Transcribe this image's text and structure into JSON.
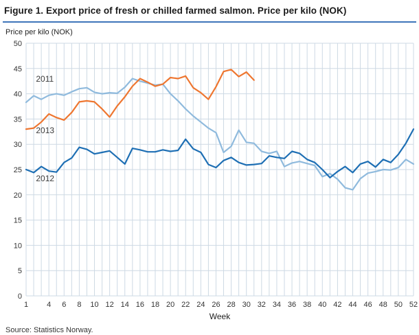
{
  "header": {
    "title": "Figure 1. Export price of fresh or chilled farmed salmon. Price per kilo (NOK)"
  },
  "colors": {
    "title_rule": "#3e75ba",
    "grid": "#cdd9e4",
    "tick_text": "#333333"
  },
  "chart_data": {
    "type": "line",
    "title": "Figure 1. Export price of fresh or chilled farmed salmon. Price per kilo (NOK)",
    "ylabel": "Price per kilo (NOK)",
    "xlabel": "Week",
    "xlim": [
      1,
      52
    ],
    "ylim": [
      0,
      50
    ],
    "grid": true,
    "legend_position": "inline-labels",
    "x_ticks": [
      1,
      4,
      6,
      8,
      10,
      12,
      14,
      16,
      18,
      20,
      22,
      24,
      26,
      28,
      30,
      32,
      34,
      36,
      38,
      40,
      42,
      44,
      46,
      48,
      50,
      52
    ],
    "y_ticks": [
      0,
      5,
      10,
      15,
      20,
      25,
      30,
      35,
      40,
      45,
      50
    ],
    "series": [
      {
        "name": "2011",
        "color": "#8fbadd",
        "x_start": 1,
        "values": [
          38.3,
          39.6,
          38.9,
          39.7,
          40.0,
          39.7,
          40.4,
          41.0,
          41.2,
          40.3,
          40.0,
          40.2,
          40.1,
          41.3,
          43.0,
          42.5,
          42.1,
          41.7,
          41.9,
          40.0,
          38.6,
          37.0,
          35.6,
          34.4,
          33.2,
          32.3,
          28.4,
          29.6,
          32.8,
          30.4,
          30.2,
          28.6,
          28.2,
          28.6,
          25.6,
          26.3,
          26.6,
          26.2,
          25.8,
          23.6,
          24.2,
          23.1,
          21.4,
          21.0,
          23.2,
          24.3,
          24.6,
          25.0,
          24.9,
          25.4,
          27.0,
          26.1
        ]
      },
      {
        "name": "2012",
        "color": "#1e6fb4",
        "x_start": 1,
        "values": [
          25.0,
          24.4,
          25.6,
          24.7,
          24.5,
          26.4,
          27.3,
          29.4,
          29.0,
          28.1,
          28.4,
          28.7,
          27.4,
          26.1,
          29.2,
          28.9,
          28.5,
          28.5,
          28.9,
          28.6,
          28.8,
          31.0,
          29.1,
          28.4,
          26.0,
          25.4,
          26.8,
          27.4,
          26.4,
          25.9,
          26.0,
          26.2,
          27.7,
          27.4,
          27.2,
          28.6,
          28.2,
          27.0,
          26.4,
          25.0,
          23.4,
          24.6,
          25.6,
          24.4,
          26.1,
          26.6,
          25.5,
          27.0,
          26.4,
          28.0,
          30.2,
          33.0
        ]
      },
      {
        "name": "2013",
        "color": "#ee7630",
        "x_start": 1,
        "values": [
          33.0,
          33.2,
          34.4,
          36.0,
          35.3,
          34.8,
          36.3,
          38.4,
          38.6,
          38.4,
          37.0,
          35.4,
          37.6,
          39.4,
          41.5,
          43.0,
          42.3,
          41.5,
          41.9,
          43.2,
          43.0,
          43.5,
          41.2,
          40.2,
          38.9,
          41.4,
          44.4,
          44.8,
          43.4,
          44.3,
          42.7
        ]
      }
    ],
    "labels": [
      {
        "text": "2011",
        "week": 2.3,
        "value": 42.4
      },
      {
        "text": "2013",
        "week": 2.3,
        "value": 32.2
      },
      {
        "text": "2012",
        "week": 2.3,
        "value": 22.7
      }
    ]
  },
  "footer": {
    "source": "Source: Statistics Norway."
  }
}
